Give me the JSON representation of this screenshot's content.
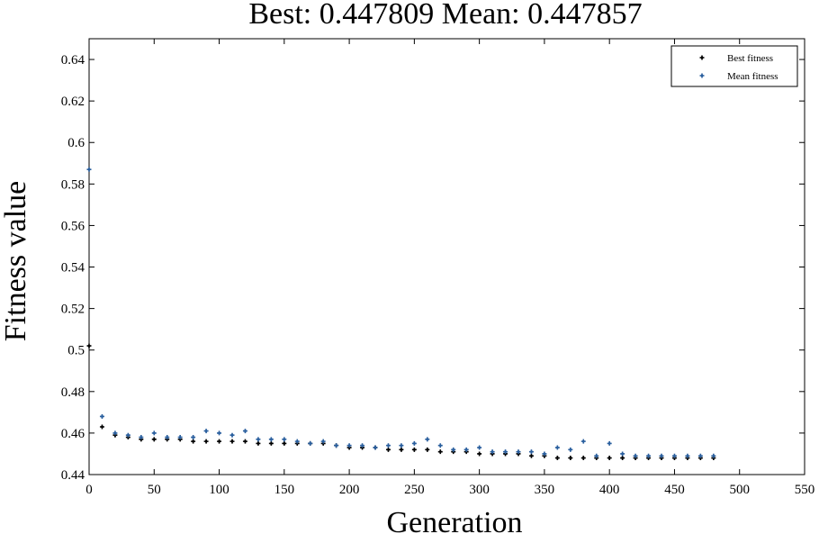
{
  "chart_data": {
    "type": "scatter",
    "title": "Best: 0.447809 Mean: 0.447857",
    "xlabel": "Generation",
    "ylabel": "Fitness value",
    "xlim": [
      0,
      550
    ],
    "ylim": [
      0.44,
      0.65
    ],
    "x_ticks": [
      0,
      50,
      100,
      150,
      200,
      250,
      300,
      350,
      400,
      450,
      500,
      550
    ],
    "x_tick_labels": [
      "0",
      "50",
      "100",
      "150",
      "200",
      "250",
      "300",
      "350",
      "400",
      "450",
      "500",
      "550"
    ],
    "y_ticks": [
      0.44,
      0.46,
      0.48,
      0.5,
      0.52,
      0.54,
      0.56,
      0.58,
      0.6,
      0.62,
      0.64
    ],
    "y_tick_labels": [
      "0.44",
      "0.46",
      "0.48",
      "0.5",
      "0.52",
      "0.54",
      "0.56",
      "0.58",
      "0.6",
      "0.62",
      "0.64"
    ],
    "grid": false,
    "legend_position": "top-right",
    "series": [
      {
        "name": "Best fitness",
        "color": "#000000",
        "x": [
          0,
          10,
          20,
          30,
          40,
          50,
          60,
          70,
          80,
          90,
          100,
          110,
          120,
          130,
          140,
          150,
          160,
          170,
          180,
          190,
          200,
          210,
          220,
          230,
          240,
          250,
          260,
          270,
          280,
          290,
          300,
          310,
          320,
          330,
          340,
          350,
          360,
          370,
          380,
          390,
          400,
          410,
          420,
          430,
          440,
          450,
          460,
          470,
          480
        ],
        "y": [
          0.502,
          0.463,
          0.459,
          0.458,
          0.457,
          0.457,
          0.457,
          0.457,
          0.456,
          0.456,
          0.456,
          0.456,
          0.456,
          0.455,
          0.455,
          0.455,
          0.455,
          0.455,
          0.455,
          0.454,
          0.453,
          0.453,
          0.453,
          0.452,
          0.452,
          0.452,
          0.452,
          0.451,
          0.451,
          0.451,
          0.45,
          0.45,
          0.45,
          0.45,
          0.449,
          0.449,
          0.448,
          0.448,
          0.448,
          0.448,
          0.448,
          0.448,
          0.448,
          0.448,
          0.448,
          0.448,
          0.448,
          0.448,
          0.448
        ]
      },
      {
        "name": "Mean fitness",
        "color": "#2a5f9e",
        "x": [
          0,
          10,
          20,
          30,
          40,
          50,
          60,
          70,
          80,
          90,
          100,
          110,
          120,
          130,
          140,
          150,
          160,
          170,
          180,
          190,
          200,
          210,
          220,
          230,
          240,
          250,
          260,
          270,
          280,
          290,
          300,
          310,
          320,
          330,
          340,
          350,
          360,
          370,
          380,
          390,
          400,
          410,
          420,
          430,
          440,
          450,
          460,
          470,
          480
        ],
        "y": [
          0.587,
          0.468,
          0.46,
          0.459,
          0.458,
          0.46,
          0.458,
          0.458,
          0.458,
          0.461,
          0.46,
          0.459,
          0.461,
          0.457,
          0.457,
          0.457,
          0.456,
          0.455,
          0.456,
          0.454,
          0.454,
          0.454,
          0.453,
          0.454,
          0.454,
          0.455,
          0.457,
          0.454,
          0.452,
          0.452,
          0.453,
          0.451,
          0.451,
          0.451,
          0.451,
          0.45,
          0.453,
          0.452,
          0.456,
          0.449,
          0.455,
          0.45,
          0.449,
          0.449,
          0.449,
          0.449,
          0.449,
          0.449,
          0.449
        ]
      }
    ]
  }
}
